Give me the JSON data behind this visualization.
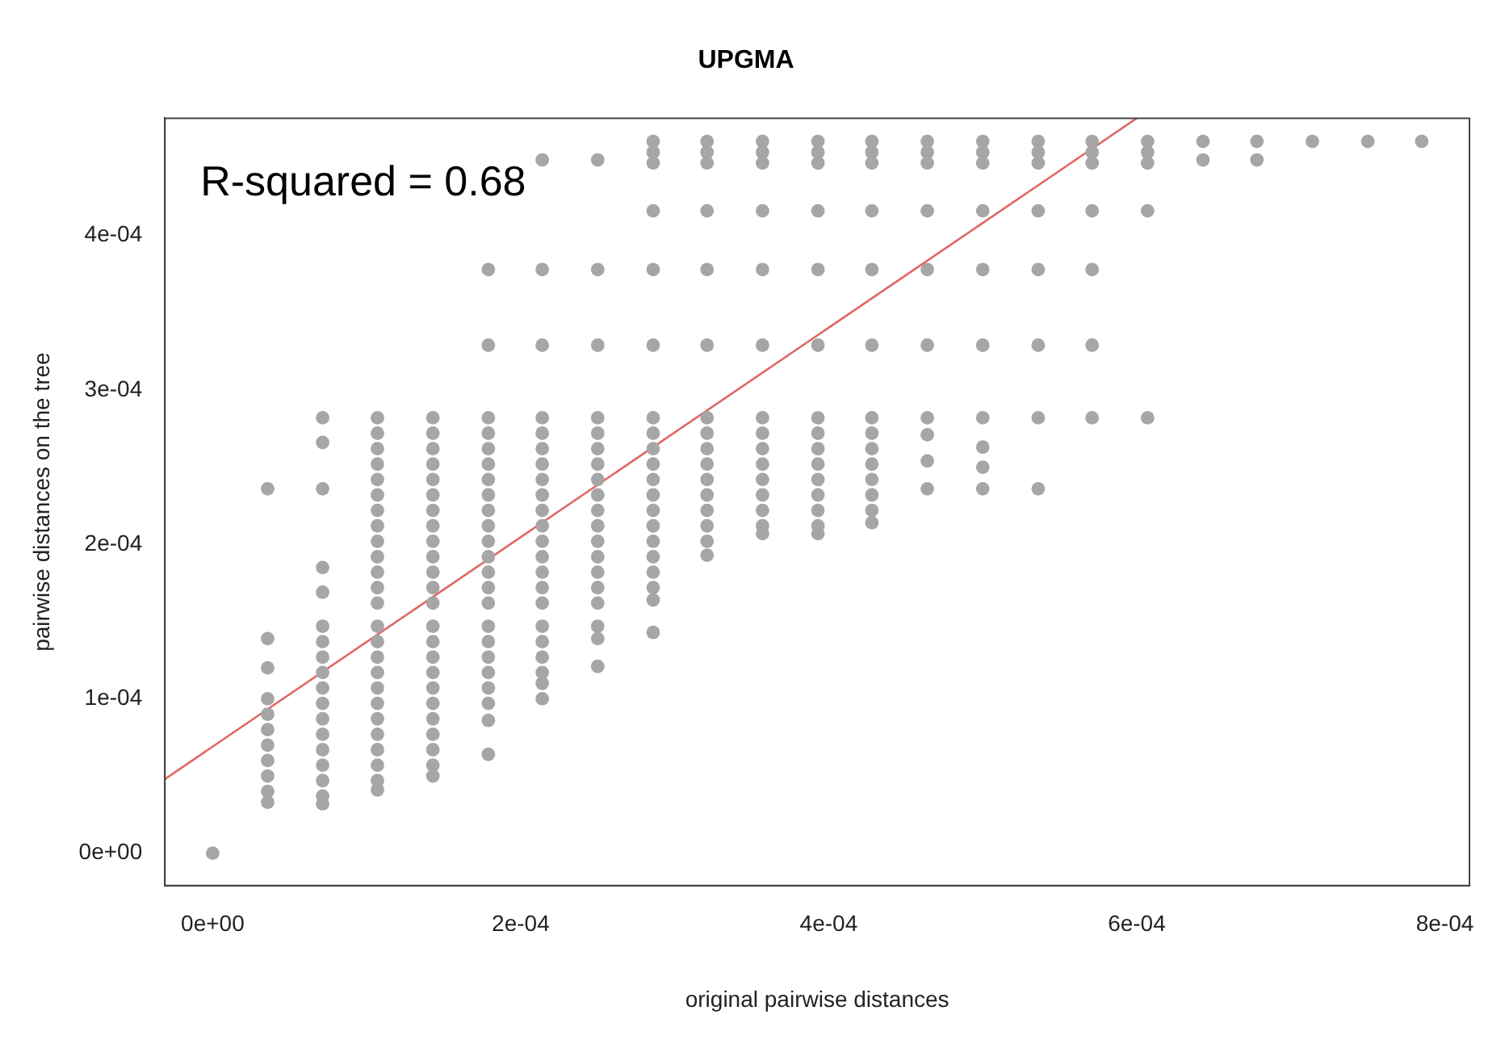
{
  "chart_data": {
    "type": "scatter",
    "title": "UPGMA",
    "xlabel": "original pairwise distances",
    "ylabel": "pairwise distances on the tree",
    "annotations": [
      "R-squared = 0.68"
    ],
    "xlim": [
      -3.1e-05,
      0.000816
    ],
    "ylim": [
      -2.1e-05,
      0.000476
    ],
    "xticks": [
      {
        "value": 0,
        "label": "0e+00"
      },
      {
        "value": 0.0002,
        "label": "2e-04"
      },
      {
        "value": 0.0004,
        "label": "4e-04"
      },
      {
        "value": 0.0006,
        "label": "6e-04"
      },
      {
        "value": 0.0008,
        "label": "8e-04"
      }
    ],
    "yticks": [
      {
        "value": 0,
        "label": "0e+00"
      },
      {
        "value": 0.0001,
        "label": "1e-04"
      },
      {
        "value": 0.0002,
        "label": "2e-04"
      },
      {
        "value": 0.0003,
        "label": "3e-04"
      },
      {
        "value": 0.0004,
        "label": "4e-04"
      }
    ],
    "grid": false,
    "legend": false,
    "marker": "circle",
    "series": [
      {
        "color": "#a6a6a6",
        "x": [
          0
        ],
        "values": [
          0
        ]
      },
      {
        "color": "#a6a6a6",
        "x": [
          3.57e-05,
          3.57e-05,
          3.57e-05,
          3.57e-05,
          3.57e-05,
          3.57e-05,
          3.57e-05,
          3.57e-05,
          3.57e-05,
          3.57e-05,
          3.57e-05
        ],
        "values": [
          0.000236,
          0.000139,
          0.00012,
          0.0001,
          9e-05,
          8e-05,
          7e-05,
          6e-05,
          5e-05,
          4e-05,
          3.3e-05
        ]
      },
      {
        "color": "#a6a6a6",
        "x": [
          7.14e-05,
          7.14e-05,
          7.14e-05,
          7.14e-05,
          7.14e-05,
          7.14e-05,
          7.14e-05,
          7.14e-05,
          7.14e-05,
          7.14e-05,
          7.14e-05,
          7.14e-05,
          7.14e-05,
          7.14e-05,
          7.14e-05,
          7.14e-05,
          7.14e-05,
          7.14e-05
        ],
        "values": [
          0.000282,
          0.000266,
          0.000236,
          0.000185,
          0.000169,
          0.000147,
          0.000137,
          0.000127,
          0.000117,
          0.000107,
          9.7e-05,
          8.7e-05,
          7.7e-05,
          6.7e-05,
          5.7e-05,
          4.7e-05,
          3.7e-05,
          3.2e-05
        ]
      },
      {
        "color": "#a6a6a6",
        "x": [
          0.000107,
          0.000107,
          0.000107,
          0.000107,
          0.000107,
          0.000107,
          0.000107,
          0.000107,
          0.000107,
          0.000107,
          0.000107,
          0.000107,
          0.000107,
          0.000107,
          0.000107,
          0.000107,
          0.000107,
          0.000107,
          0.000107,
          0.000107,
          0.000107,
          0.000107,
          0.000107,
          0.000107,
          0.000107
        ],
        "values": [
          0.000282,
          0.000272,
          0.000262,
          0.000252,
          0.000242,
          0.000232,
          0.000222,
          0.000212,
          0.000202,
          0.000192,
          0.000182,
          0.000172,
          0.000162,
          0.000147,
          0.000137,
          0.000127,
          0.000117,
          0.000107,
          9.7e-05,
          8.7e-05,
          7.7e-05,
          6.7e-05,
          5.7e-05,
          4.7e-05,
          4.1e-05
        ]
      },
      {
        "color": "#a6a6a6",
        "x": [
          0.000143,
          0.000143,
          0.000143,
          0.000143,
          0.000143,
          0.000143,
          0.000143,
          0.000143,
          0.000143,
          0.000143,
          0.000143,
          0.000143,
          0.000143,
          0.000143,
          0.000143,
          0.000143,
          0.000143,
          0.000143,
          0.000143,
          0.000143,
          0.000143,
          0.000143,
          0.000143,
          0.000143
        ],
        "values": [
          0.000282,
          0.000272,
          0.000262,
          0.000252,
          0.000242,
          0.000232,
          0.000222,
          0.000212,
          0.000202,
          0.000192,
          0.000182,
          0.000172,
          0.000162,
          0.000147,
          0.000137,
          0.000127,
          0.000117,
          0.000107,
          9.7e-05,
          8.7e-05,
          7.7e-05,
          6.7e-05,
          5.7e-05,
          5e-05
        ]
      },
      {
        "color": "#a6a6a6",
        "x": [
          0.000179,
          0.000179,
          0.000179,
          0.000179,
          0.000179,
          0.000179,
          0.000179,
          0.000179,
          0.000179,
          0.000179,
          0.000179,
          0.000179,
          0.000179,
          0.000179,
          0.000179,
          0.000179,
          0.000179,
          0.000179,
          0.000179,
          0.000179,
          0.000179,
          0.000179,
          0.000179
        ],
        "values": [
          0.000378,
          0.000329,
          0.000282,
          0.000272,
          0.000262,
          0.000252,
          0.000242,
          0.000232,
          0.000222,
          0.000212,
          0.000202,
          0.000192,
          0.000182,
          0.000172,
          0.000162,
          0.000147,
          0.000137,
          0.000127,
          0.000117,
          0.000107,
          9.7e-05,
          8.6e-05,
          6.4e-05
        ]
      },
      {
        "color": "#a6a6a6",
        "x": [
          0.000214,
          0.000214,
          0.000214,
          0.000214,
          0.000214,
          0.000214,
          0.000214,
          0.000214,
          0.000214,
          0.000214,
          0.000214,
          0.000214,
          0.000214,
          0.000214,
          0.000214,
          0.000214,
          0.000214,
          0.000214,
          0.000214,
          0.000214,
          0.000214,
          0.000214
        ],
        "values": [
          0.000449,
          0.000378,
          0.000329,
          0.000282,
          0.000272,
          0.000262,
          0.000252,
          0.000242,
          0.000232,
          0.000222,
          0.000212,
          0.000202,
          0.000192,
          0.000182,
          0.000172,
          0.000162,
          0.000147,
          0.000137,
          0.000127,
          0.000117,
          0.00011,
          0.0001
        ]
      },
      {
        "color": "#a6a6a6",
        "x": [
          0.00025,
          0.00025,
          0.00025,
          0.00025,
          0.00025,
          0.00025,
          0.00025,
          0.00025,
          0.00025,
          0.00025,
          0.00025,
          0.00025,
          0.00025,
          0.00025,
          0.00025,
          0.00025,
          0.00025,
          0.00025,
          0.00025
        ],
        "values": [
          0.000449,
          0.000378,
          0.000329,
          0.000282,
          0.000272,
          0.000262,
          0.000252,
          0.000242,
          0.000232,
          0.000222,
          0.000212,
          0.000202,
          0.000192,
          0.000182,
          0.000172,
          0.000162,
          0.000147,
          0.000139,
          0.000121
        ]
      },
      {
        "color": "#a6a6a6",
        "x": [
          0.000286,
          0.000286,
          0.000286,
          0.000286,
          0.000286,
          0.000286,
          0.000286,
          0.000286,
          0.000286,
          0.000286,
          0.000286,
          0.000286,
          0.000286,
          0.000286,
          0.000286,
          0.000286,
          0.000286,
          0.000286,
          0.000286,
          0.000286
        ],
        "values": [
          0.000461,
          0.000454,
          0.000447,
          0.000416,
          0.000378,
          0.000329,
          0.000282,
          0.000272,
          0.000262,
          0.000252,
          0.000242,
          0.000232,
          0.000222,
          0.000212,
          0.000202,
          0.000192,
          0.000182,
          0.000172,
          0.000164,
          0.000143
        ]
      },
      {
        "color": "#a6a6a6",
        "x": [
          0.000321,
          0.000321,
          0.000321,
          0.000321,
          0.000321,
          0.000321,
          0.000321,
          0.000321,
          0.000321,
          0.000321,
          0.000321,
          0.000321,
          0.000321,
          0.000321,
          0.000321,
          0.000321
        ],
        "values": [
          0.000461,
          0.000454,
          0.000447,
          0.000416,
          0.000378,
          0.000329,
          0.000282,
          0.000272,
          0.000262,
          0.000252,
          0.000242,
          0.000232,
          0.000222,
          0.000212,
          0.000202,
          0.000193
        ]
      },
      {
        "color": "#a6a6a6",
        "x": [
          0.000357,
          0.000357,
          0.000357,
          0.000357,
          0.000357,
          0.000357,
          0.000357,
          0.000357,
          0.000357,
          0.000357,
          0.000357,
          0.000357,
          0.000357,
          0.000357,
          0.000357
        ],
        "values": [
          0.000461,
          0.000454,
          0.000447,
          0.000416,
          0.000378,
          0.000329,
          0.000282,
          0.000272,
          0.000262,
          0.000252,
          0.000242,
          0.000232,
          0.000222,
          0.000212,
          0.000207
        ]
      },
      {
        "color": "#a6a6a6",
        "x": [
          0.000393,
          0.000393,
          0.000393,
          0.000393,
          0.000393,
          0.000393,
          0.000393,
          0.000393,
          0.000393,
          0.000393,
          0.000393,
          0.000393,
          0.000393,
          0.000393,
          0.000393
        ],
        "values": [
          0.000461,
          0.000454,
          0.000447,
          0.000416,
          0.000378,
          0.000329,
          0.000282,
          0.000272,
          0.000262,
          0.000252,
          0.000242,
          0.000232,
          0.000222,
          0.000212,
          0.000207
        ]
      },
      {
        "color": "#a6a6a6",
        "x": [
          0.000428,
          0.000428,
          0.000428,
          0.000428,
          0.000428,
          0.000428,
          0.000428,
          0.000428,
          0.000428,
          0.000428,
          0.000428,
          0.000428,
          0.000428,
          0.000428
        ],
        "values": [
          0.000461,
          0.000454,
          0.000447,
          0.000416,
          0.000378,
          0.000329,
          0.000282,
          0.000272,
          0.000262,
          0.000252,
          0.000242,
          0.000232,
          0.000222,
          0.000214
        ]
      },
      {
        "color": "#a6a6a6",
        "x": [
          0.000464,
          0.000464,
          0.000464,
          0.000464,
          0.000464,
          0.000464,
          0.000464,
          0.000464,
          0.000464,
          0.000464
        ],
        "values": [
          0.000461,
          0.000454,
          0.000447,
          0.000416,
          0.000378,
          0.000329,
          0.000282,
          0.000271,
          0.000254,
          0.000236
        ]
      },
      {
        "color": "#a6a6a6",
        "x": [
          0.0005,
          0.0005,
          0.0005,
          0.0005,
          0.0005,
          0.0005,
          0.0005,
          0.0005,
          0.0005,
          0.0005
        ],
        "values": [
          0.000461,
          0.000454,
          0.000447,
          0.000416,
          0.000378,
          0.000329,
          0.000282,
          0.000263,
          0.00025,
          0.000236
        ]
      },
      {
        "color": "#a6a6a6",
        "x": [
          0.000536,
          0.000536,
          0.000536,
          0.000536,
          0.000536,
          0.000536,
          0.000536,
          0.000536
        ],
        "values": [
          0.000461,
          0.000454,
          0.000447,
          0.000416,
          0.000378,
          0.000329,
          0.000282,
          0.000236
        ]
      },
      {
        "color": "#a6a6a6",
        "x": [
          0.000571,
          0.000571,
          0.000571,
          0.000571,
          0.000571,
          0.000571,
          0.000571
        ],
        "values": [
          0.000461,
          0.000454,
          0.000447,
          0.000416,
          0.000378,
          0.000329,
          0.000282
        ]
      },
      {
        "color": "#a6a6a6",
        "x": [
          0.000607,
          0.000607,
          0.000607,
          0.000607,
          0.000607
        ],
        "values": [
          0.000461,
          0.000454,
          0.000447,
          0.000416,
          0.000282
        ]
      },
      {
        "color": "#a6a6a6",
        "x": [
          0.000643,
          0.000643
        ],
        "values": [
          0.000461,
          0.000449
        ]
      },
      {
        "color": "#a6a6a6",
        "x": [
          0.000678,
          0.000678
        ],
        "values": [
          0.000461,
          0.000449
        ]
      },
      {
        "color": "#a6a6a6",
        "x": [
          0.000714,
          0.00075,
          0.000785
        ],
        "values": [
          0.000461,
          0.000461,
          0.000461
        ]
      },
      {
        "type": "line",
        "color": "#e06666",
        "marker": "none",
        "x": [
          -3.1e-05,
          0.0006
        ],
        "values": [
          4.8e-05,
          0.000476
        ]
      }
    ]
  }
}
